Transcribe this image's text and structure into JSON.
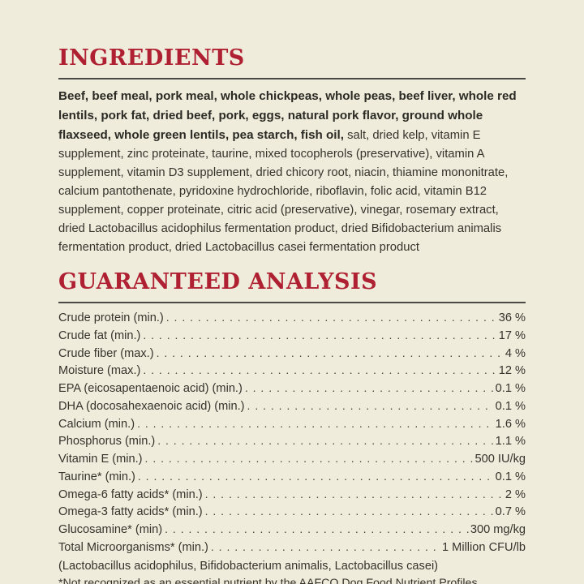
{
  "page": {
    "background_color": "#F0ECDB",
    "accent_color": "#AF2132",
    "rule_color": "#4B4943",
    "text_color": "#34322B"
  },
  "ingredients": {
    "heading": "INGREDIENTS",
    "bold_text": "Beef, beef meal, pork meal, whole chickpeas, whole peas, beef liver, whole red lentils, pork fat, dried beef, pork, eggs, natural pork flavor, ground whole flaxseed, whole green lentils, pea starch, fish oil,",
    "regular_text": " salt, dried kelp, vitamin E supplement, zinc proteinate, taurine, mixed tocopherols (preservative), vitamin A supplement, vitamin D3 supplement, dried chicory root, niacin, thiamine mononitrate, calcium pantothenate, pyridoxine hydrochloride, riboflavin, folic acid, vitamin B12 supplement, copper proteinate, citric acid (preservative), vinegar, rosemary extract, dried Lactobacillus acidophilus fermentation product, dried Bifidobacterium animalis fermentation product, dried Lactobacillus casei fermentation product"
  },
  "analysis": {
    "heading": "GUARANTEED ANALYSIS",
    "rows": [
      {
        "label": "Crude protein (min.)",
        "value": "36 %"
      },
      {
        "label": "Crude fat (min.)",
        "value": "17 %"
      },
      {
        "label": "Crude fiber (max.)",
        "value": "4 %"
      },
      {
        "label": "Moisture (max.)",
        "value": "12 %"
      },
      {
        "label": "EPA (eicosapentaenoic acid) (min.)",
        "value": "0.1 %"
      },
      {
        "label": "DHA (docosahexaenoic acid) (min.)",
        "value": "0.1 %"
      },
      {
        "label": "Calcium (min.)",
        "value": "1.6 %"
      },
      {
        "label": "Phosphorus (min.)",
        "value": "1.1 %"
      },
      {
        "label": "Vitamin E (min.)",
        "value": "500 IU/kg"
      },
      {
        "label": "Taurine* (min.)",
        "value": "0.1 %"
      },
      {
        "label": "Omega-6 fatty acids* (min.)",
        "value": "2 %"
      },
      {
        "label": "Omega-3 fatty acids* (min.)",
        "value": "0.7 %"
      },
      {
        "label": "Glucosamine* (min)",
        "value": "300 mg/kg"
      },
      {
        "label": "Total Microorganisms* (min.)",
        "value": "1 Million CFU/lb"
      }
    ],
    "microorganisms_detail": "(Lactobacillus acidophilus, Bifidobacterium animalis, Lactobacillus casei)",
    "footnote": "*Not recognized as an essential nutrient by the AAFCO Dog Food Nutrient Profiles"
  }
}
